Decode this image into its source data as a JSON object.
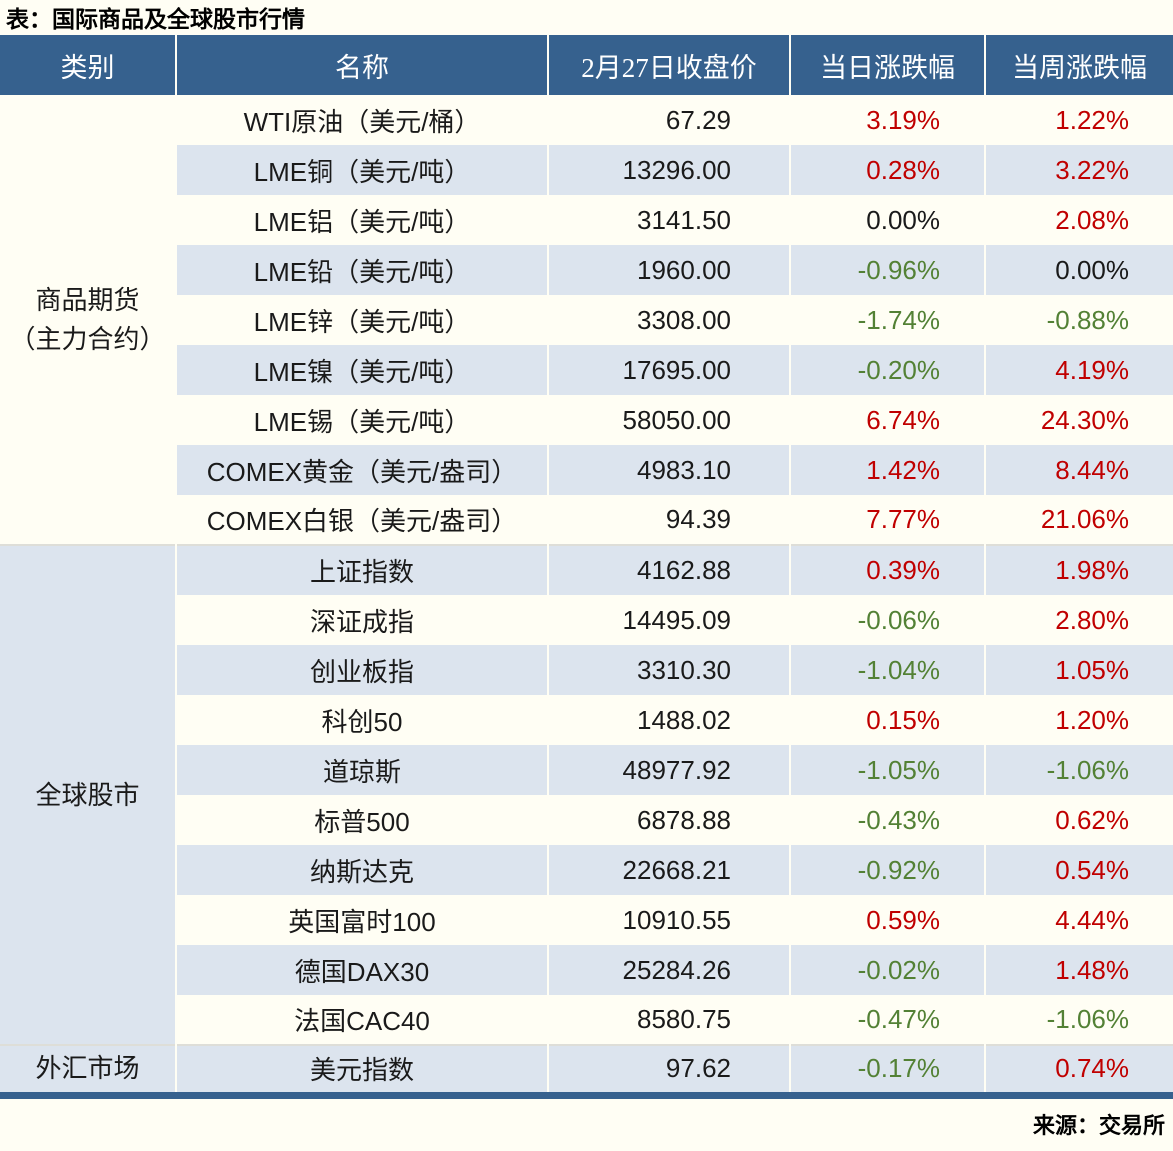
{
  "chart_data": {
    "type": "table",
    "title": "表：国际商品及全球股市行情",
    "source": "来源：交易所",
    "columns": [
      "类别",
      "名称",
      "2月27日收盘价",
      "当日涨跌幅",
      "当周涨跌幅"
    ],
    "groups": [
      {
        "category_lines": [
          "商品期货",
          "（主力合约）"
        ],
        "rows": [
          {
            "name": "WTI原油（美元/桶）",
            "close": "67.29",
            "daily": "3.19%",
            "weekly": "1.22%"
          },
          {
            "name": "LME铜（美元/吨）",
            "close": "13296.00",
            "daily": "0.28%",
            "weekly": "3.22%"
          },
          {
            "name": "LME铝（美元/吨）",
            "close": "3141.50",
            "daily": "0.00%",
            "weekly": "2.08%"
          },
          {
            "name": "LME铅（美元/吨）",
            "close": "1960.00",
            "daily": "-0.96%",
            "weekly": "0.00%"
          },
          {
            "name": "LME锌（美元/吨）",
            "close": "3308.00",
            "daily": "-1.74%",
            "weekly": "-0.88%"
          },
          {
            "name": "LME镍（美元/吨）",
            "close": "17695.00",
            "daily": "-0.20%",
            "weekly": "4.19%"
          },
          {
            "name": "LME锡（美元/吨）",
            "close": "58050.00",
            "daily": "6.74%",
            "weekly": "24.30%"
          },
          {
            "name": "COMEX黄金（美元/盎司）",
            "close": "4983.10",
            "daily": "1.42%",
            "weekly": "8.44%"
          },
          {
            "name": "COMEX白银（美元/盎司）",
            "close": "94.39",
            "daily": "7.77%",
            "weekly": "21.06%"
          }
        ]
      },
      {
        "category_lines": [
          "全球股市"
        ],
        "rows": [
          {
            "name": "上证指数",
            "close": "4162.88",
            "daily": "0.39%",
            "weekly": "1.98%"
          },
          {
            "name": "深证成指",
            "close": "14495.09",
            "daily": "-0.06%",
            "weekly": "2.80%"
          },
          {
            "name": "创业板指",
            "close": "3310.30",
            "daily": "-1.04%",
            "weekly": "1.05%"
          },
          {
            "name": "科创50",
            "close": "1488.02",
            "daily": "0.15%",
            "weekly": "1.20%"
          },
          {
            "name": "道琼斯",
            "close": "48977.92",
            "daily": "-1.05%",
            "weekly": "-1.06%"
          },
          {
            "name": "标普500",
            "close": "6878.88",
            "daily": "-0.43%",
            "weekly": "0.62%"
          },
          {
            "name": "纳斯达克",
            "close": "22668.21",
            "daily": "-0.92%",
            "weekly": "0.54%"
          },
          {
            "name": "英国富时100",
            "close": "10910.55",
            "daily": "0.59%",
            "weekly": "4.44%"
          },
          {
            "name": "德国DAX30",
            "close": "25284.26",
            "daily": "-0.02%",
            "weekly": "1.48%"
          },
          {
            "name": "法国CAC40",
            "close": "8580.75",
            "daily": "-0.47%",
            "weekly": "-1.06%"
          }
        ]
      },
      {
        "category_lines": [
          "外汇市场"
        ],
        "rows": [
          {
            "name": "美元指数",
            "close": "97.62",
            "daily": "-0.17%",
            "weekly": "0.74%"
          }
        ]
      }
    ]
  },
  "colors": {
    "page_bg": "#FFFEF4",
    "header_bg": "#36618E",
    "header_text": "#FFFFFF",
    "stripe_bg": "#DCE4EE",
    "up_red": "#C00000",
    "down_green": "#538135",
    "flat_black": "#1A1A1A"
  }
}
